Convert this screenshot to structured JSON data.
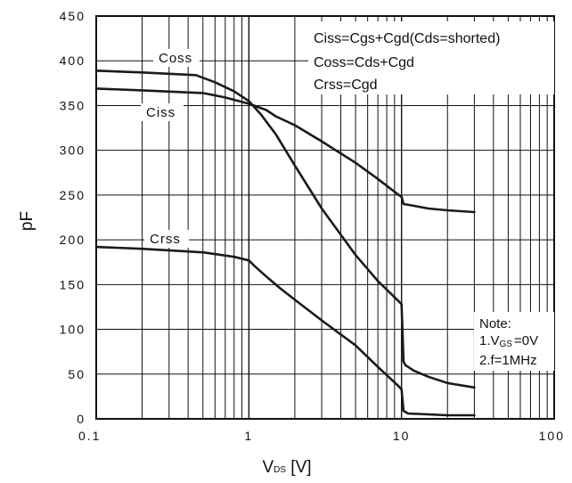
{
  "chart_data": {
    "type": "line",
    "title": "",
    "xlabel": {
      "main": "V",
      "sub": "DS",
      "tail": " [V]"
    },
    "ylabel": "pF",
    "xscale": "log",
    "xlim": [
      0.1,
      100
    ],
    "ylim": [
      0,
      450
    ],
    "grid": true,
    "x_ticks": [
      {
        "value": 0.1,
        "label": "0.1"
      },
      {
        "value": 1,
        "label": "1"
      },
      {
        "value": 10,
        "label": "10"
      },
      {
        "value": 100,
        "label": "100"
      }
    ],
    "y_ticks": [
      {
        "value": 0,
        "label": "0"
      },
      {
        "value": 50,
        "label": "50"
      },
      {
        "value": 100,
        "label": "100"
      },
      {
        "value": 150,
        "label": "150"
      },
      {
        "value": 200,
        "label": "200"
      },
      {
        "value": 250,
        "label": "250"
      },
      {
        "value": 300,
        "label": "300"
      },
      {
        "value": 350,
        "label": "350"
      },
      {
        "value": 400,
        "label": "400"
      },
      {
        "value": 450,
        "label": "450"
      }
    ],
    "series": [
      {
        "name": "Coss",
        "x": [
          0.1,
          0.2,
          0.45,
          0.6,
          0.8,
          1.0,
          1.2,
          1.5,
          2.0,
          3.0,
          5.0,
          7.0,
          9.5,
          10.0,
          10.3,
          10.6,
          12,
          15,
          20,
          30
        ],
        "y": [
          389,
          387,
          384,
          376,
          366,
          355,
          340,
          318,
          283,
          235,
          183,
          154,
          132,
          128,
          64,
          60,
          54,
          47,
          40,
          35
        ]
      },
      {
        "name": "Ciss",
        "x": [
          0.1,
          0.2,
          0.5,
          0.7,
          1.0,
          1.3,
          1.5,
          2.0,
          3.0,
          5.0,
          7.0,
          9.6,
          10.0,
          10.3,
          12,
          15,
          20,
          30
        ],
        "y": [
          369,
          367,
          364,
          359,
          352,
          345,
          338,
          328,
          310,
          286,
          268,
          250,
          248,
          240,
          238,
          235,
          233,
          231
        ]
      },
      {
        "name": "Crss",
        "x": [
          0.1,
          0.2,
          0.5,
          0.8,
          1.0,
          1.1,
          1.3,
          1.6,
          2.0,
          3.0,
          5.0,
          7.0,
          9.5,
          10.0,
          10.3,
          11,
          15,
          20,
          30
        ],
        "y": [
          192,
          190,
          186,
          181,
          177,
          170,
          159,
          146,
          133,
          110,
          82,
          58,
          37,
          33,
          9,
          6,
          5,
          4,
          4
        ]
      }
    ],
    "curve_labels": [
      "Coss",
      "Ciss",
      "Crss"
    ],
    "legend": [
      "Ciss=Cgs+Cgd(Cds=shorted)",
      "Coss=Cds+Cgd",
      "Crss=Cgd"
    ],
    "note": {
      "title": "Note:",
      "line1_pre": "1.V",
      "line1_sub": "GS",
      "line1_post": "=0V",
      "line2": "2.f=1MHz"
    }
  }
}
